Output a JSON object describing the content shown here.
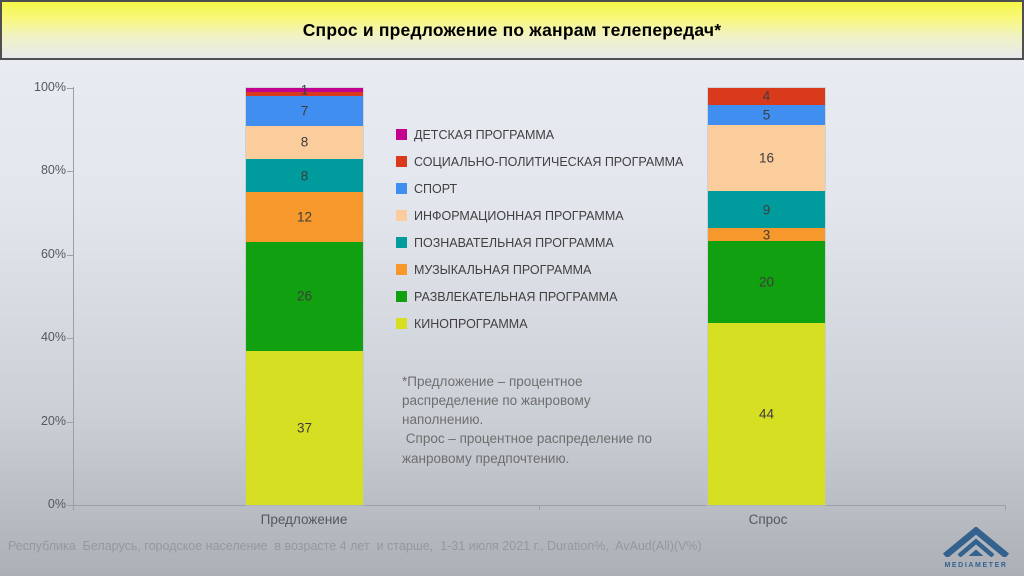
{
  "title": "Спрос и предложение по жанрам телепередач*",
  "chart_data": {
    "type": "bar",
    "stacked": true,
    "unit": "%",
    "title": "Спрос и предложение по жанрам телепередач*",
    "categories": [
      "Предложение",
      "Спрос"
    ],
    "series": [
      {
        "name": "КИНОПРОГРАММА",
        "color": "#d7df23",
        "values": [
          37,
          44
        ],
        "labels": [
          "37",
          "44"
        ]
      },
      {
        "name": "РАЗВЛЕКАТЕЛЬНАЯ ПРОГРАММА",
        "color": "#10a010",
        "values": [
          26,
          20
        ],
        "labels": [
          "26",
          "20"
        ]
      },
      {
        "name": "МУЗЫКАЛЬНАЯ ПРОГРАММА",
        "color": "#f6982b",
        "values": [
          12,
          3
        ],
        "labels": [
          "12",
          "3"
        ]
      },
      {
        "name": "ПОЗНАВАТЕЛЬНАЯ ПРОГРАММА",
        "color": "#009b9c",
        "values": [
          8,
          9
        ],
        "labels": [
          "8",
          "9"
        ]
      },
      {
        "name": "ИНФОРМАЦИОННАЯ ПРОГРАММА",
        "color": "#fccd9c",
        "values": [
          8,
          16
        ],
        "labels": [
          "8",
          "16"
        ]
      },
      {
        "name": "СПОРТ",
        "color": "#3f8ef0",
        "values": [
          7,
          5
        ],
        "labels": [
          "7",
          "5"
        ]
      },
      {
        "name": "СОЦИАЛЬНО-ПОЛИТИЧЕСКАЯ ПРОГРАММА",
        "color": "#d93a1c",
        "values": [
          1,
          4
        ],
        "labels": [
          "",
          "4"
        ]
      },
      {
        "name": "ДЕТСКАЯ ПРОГРАММА",
        "color": "#c4008f",
        "values": [
          1,
          0
        ],
        "labels": [
          "1",
          ""
        ]
      }
    ],
    "legend_order": "top-to-bottom reverse of stack",
    "legend_position": "center-left of plot",
    "xlabel": "",
    "ylabel": "",
    "ylim": [
      0,
      100
    ],
    "y_ticks": [
      "0%",
      "20%",
      "40%",
      "60%",
      "80%",
      "100%"
    ],
    "grid": false
  },
  "footnote": "*Предложение – процентное распределение по жанровому наполнению.\n Спрос – процентное распределение по жанровому предпочтению.",
  "source": "Республика  Беларусь, городское население  в возрасте 4 лет  и старше,  1-31 июля 2021 г., Duration%,  AvAud(All)(V%)",
  "logo": {
    "text": "MEDIAMETER"
  },
  "accent_colors": {
    "banner_yellow": "#f6f648",
    "banner_border": "#4f4f4f",
    "axis_gray": "#9aa0a6",
    "logo_blue": "#33628f"
  }
}
